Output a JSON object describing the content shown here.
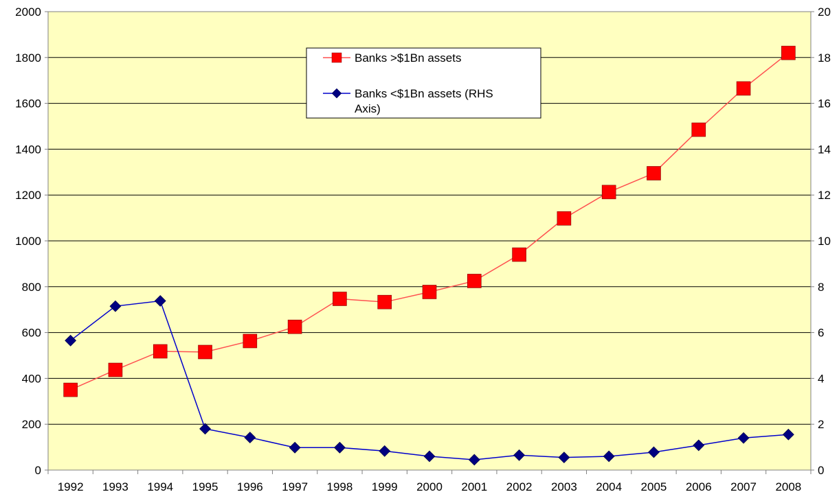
{
  "chart_data": {
    "type": "line",
    "title": "",
    "x": [
      "1992",
      "1993",
      "1994",
      "1995",
      "1996",
      "1997",
      "1998",
      "1999",
      "2000",
      "2001",
      "2002",
      "2003",
      "2004",
      "2005",
      "2006",
      "2007",
      "2008"
    ],
    "y_left_ticks": [
      "0",
      "200",
      "400",
      "600",
      "800",
      "1000",
      "1200",
      "1400",
      "1600",
      "1800",
      "2000"
    ],
    "y_right_ticks": [
      "0",
      "2",
      "4",
      "6",
      "8",
      "10",
      "12",
      "14",
      "16",
      "18",
      "20"
    ],
    "ylim_left": [
      0,
      2000
    ],
    "ylim_right": [
      0,
      20
    ],
    "grid": true,
    "legend_position": "top-center",
    "series": [
      {
        "name": "Banks >$1Bn assets",
        "axis": "left",
        "marker": "square",
        "color": "#ff0000",
        "line_color": "#ff5050",
        "values": [
          350,
          437,
          518,
          515,
          563,
          625,
          747,
          733,
          777,
          825,
          940,
          1098,
          1213,
          1295,
          1485,
          1665,
          1820
        ]
      },
      {
        "name": "Banks <$1Bn assets (RHS Axis)",
        "axis": "right",
        "marker": "diamond",
        "color": "#000080",
        "line_color": "#0000cc",
        "values": [
          5.65,
          7.15,
          7.38,
          1.8,
          1.42,
          0.98,
          0.98,
          0.83,
          0.6,
          0.45,
          0.65,
          0.55,
          0.6,
          0.78,
          1.08,
          1.4,
          1.55
        ]
      }
    ],
    "colors": {
      "plot_background": "#ffffc0",
      "gridline": "#000000",
      "axis": "#808080"
    }
  }
}
